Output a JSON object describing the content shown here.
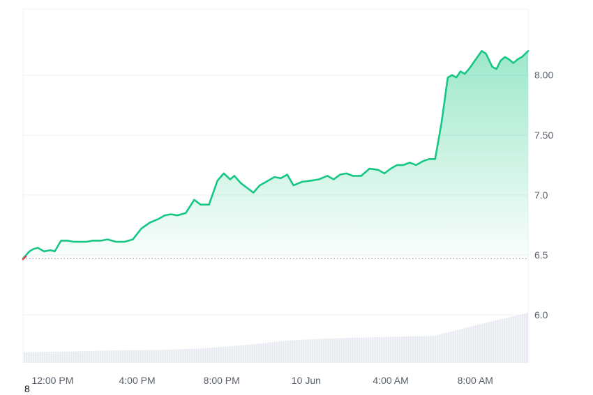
{
  "corner_label": "8",
  "colors": {
    "line": "#16c784",
    "fill_top": "#16c784",
    "grid": "#eef0f3",
    "baseline_dots": "#8a8f98",
    "start_marker": "#ea3943",
    "volume": "#e6e9ef",
    "axis_text": "#59606b"
  },
  "chart_data": {
    "type": "area",
    "title": "",
    "xlabel": "",
    "ylabel": "",
    "ylim": [
      5.6,
      8.55
    ],
    "yticks": [
      {
        "value": 8.0,
        "label": "8.00"
      },
      {
        "value": 7.5,
        "label": "7.50"
      },
      {
        "value": 7.0,
        "label": "7.0"
      },
      {
        "value": 6.5,
        "label": "6.5"
      },
      {
        "value": 6.0,
        "label": "6.0"
      }
    ],
    "xrange_hours": [
      10.6,
      34.5
    ],
    "xticks": [
      {
        "hour": 12,
        "label": "12:00 PM"
      },
      {
        "hour": 16,
        "label": "4:00 PM"
      },
      {
        "hour": 20,
        "label": "8:00 PM"
      },
      {
        "hour": 24,
        "label": "10 Jun"
      },
      {
        "hour": 28,
        "label": "4:00 AM"
      },
      {
        "hour": 32,
        "label": "8:00 AM"
      }
    ],
    "reference_value": 6.47,
    "grid": true,
    "series": [
      {
        "x": [
          10.6,
          10.9,
          11.1,
          11.3,
          11.6,
          11.9,
          12.1,
          12.4,
          12.7,
          13.0,
          13.3,
          13.6,
          13.9,
          14.3,
          14.6,
          15.0,
          15.4,
          15.8,
          16.2,
          16.6,
          17.0,
          17.3,
          17.6,
          17.9,
          18.3,
          18.7,
          19.0,
          19.4,
          19.8,
          20.1,
          20.4,
          20.6,
          20.9,
          21.2,
          21.5,
          21.6,
          21.8,
          22.0,
          22.2,
          22.5,
          22.8,
          23.1,
          23.4,
          23.8,
          24.2,
          24.6,
          25.0,
          25.3,
          25.6,
          25.9,
          26.2,
          26.6,
          27.0,
          27.4,
          27.7,
          28.0,
          28.3,
          28.6,
          28.9,
          29.2,
          29.5,
          29.8,
          30.1,
          30.4,
          30.7,
          30.9,
          31.1,
          31.3,
          31.5,
          31.7,
          31.9,
          32.1,
          32.3,
          32.5,
          32.8,
          33.0,
          33.2,
          33.4,
          33.6,
          33.8,
          34.0,
          34.2,
          34.5
        ],
        "values": [
          6.47,
          6.53,
          6.55,
          6.56,
          6.53,
          6.54,
          6.53,
          6.62,
          6.62,
          6.61,
          6.61,
          6.61,
          6.62,
          6.62,
          6.63,
          6.61,
          6.61,
          6.63,
          6.72,
          6.77,
          6.8,
          6.83,
          6.84,
          6.83,
          6.85,
          6.96,
          6.92,
          6.92,
          7.12,
          7.18,
          7.13,
          7.16,
          7.1,
          7.06,
          7.02,
          7.04,
          7.08,
          7.1,
          7.12,
          7.15,
          7.14,
          7.17,
          7.08,
          7.11,
          7.12,
          7.13,
          7.16,
          7.13,
          7.17,
          7.18,
          7.16,
          7.16,
          7.22,
          7.21,
          7.18,
          7.22,
          7.25,
          7.25,
          7.27,
          7.25,
          7.28,
          7.3,
          7.3,
          7.6,
          7.98,
          8.0,
          7.98,
          8.03,
          8.01,
          8.05,
          8.1,
          8.15,
          8.2,
          8.18,
          8.07,
          8.05,
          8.12,
          8.15,
          8.13,
          8.1,
          8.13,
          8.15,
          8.2
        ]
      }
    ],
    "volume": {
      "x": [
        10.6,
        13.0,
        15.0,
        17.0,
        19.0,
        21.5,
        23.0,
        25.0,
        27.5,
        30.0,
        32.0,
        34.5
      ],
      "values": [
        0.3,
        0.32,
        0.35,
        0.36,
        0.4,
        0.52,
        0.62,
        0.68,
        0.72,
        0.75,
        1.05,
        1.4
      ]
    }
  }
}
